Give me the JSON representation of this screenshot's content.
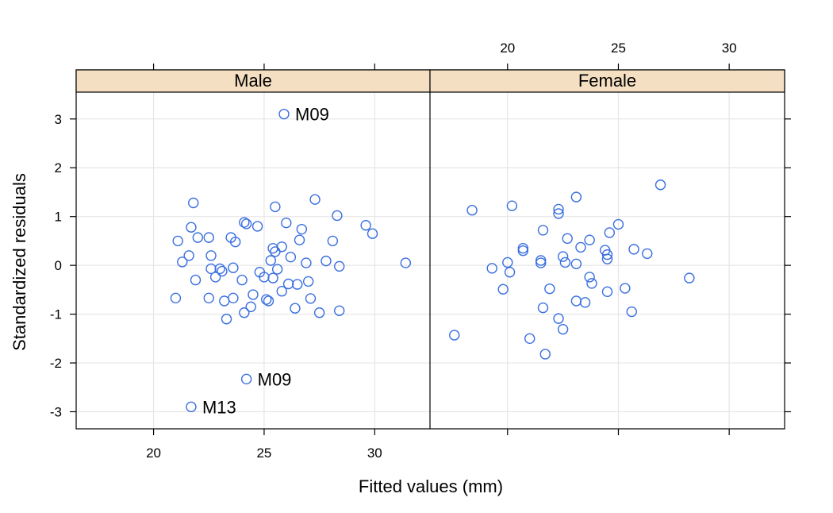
{
  "chart_data": {
    "type": "scatter",
    "xlabel": "Fitted values (mm)",
    "ylabel": "Standardized residuals",
    "xlim": [
      16.5,
      32.5
    ],
    "ylim": [
      -3.35,
      3.55
    ],
    "x_ticks": [
      20,
      25,
      30
    ],
    "y_ticks": [
      -3,
      -2,
      -1,
      0,
      1,
      2,
      3
    ],
    "grid": true,
    "colors": {
      "point": "#3a6fe0",
      "strip": "#f5dfc2",
      "grid": "#e6e6e6"
    },
    "panels": [
      {
        "name": "Male",
        "points": [
          [
            21.0,
            -0.67
          ],
          [
            21.1,
            0.5
          ],
          [
            21.3,
            0.07
          ],
          [
            21.6,
            0.2
          ],
          [
            21.7,
            0.78
          ],
          [
            21.8,
            1.28
          ],
          [
            21.9,
            -0.3
          ],
          [
            22.0,
            0.57
          ],
          [
            22.5,
            -0.67
          ],
          [
            22.5,
            0.57
          ],
          [
            22.6,
            0.2
          ],
          [
            22.6,
            -0.07
          ],
          [
            22.8,
            -0.24
          ],
          [
            23.0,
            -0.07
          ],
          [
            23.1,
            -0.12
          ],
          [
            23.2,
            -0.73
          ],
          [
            23.3,
            -1.1
          ],
          [
            23.5,
            0.57
          ],
          [
            23.6,
            -0.67
          ],
          [
            23.6,
            -0.05
          ],
          [
            23.7,
            0.48
          ],
          [
            24.0,
            -0.3
          ],
          [
            24.1,
            0.88
          ],
          [
            24.1,
            -0.97
          ],
          [
            24.2,
            0.85
          ],
          [
            24.4,
            -0.85
          ],
          [
            24.5,
            -0.6
          ],
          [
            24.7,
            0.8
          ],
          [
            24.8,
            -0.14
          ],
          [
            25.0,
            -0.24
          ],
          [
            25.1,
            -0.7
          ],
          [
            25.2,
            -0.73
          ],
          [
            25.3,
            0.1
          ],
          [
            25.4,
            0.35
          ],
          [
            25.4,
            -0.26
          ],
          [
            25.5,
            0.28
          ],
          [
            25.5,
            1.2
          ],
          [
            25.6,
            -0.08
          ],
          [
            25.8,
            0.38
          ],
          [
            25.8,
            -0.53
          ],
          [
            26.0,
            0.87
          ],
          [
            26.1,
            -0.38
          ],
          [
            26.2,
            0.17
          ],
          [
            26.4,
            -0.88
          ],
          [
            26.5,
            -0.39
          ],
          [
            26.6,
            0.52
          ],
          [
            26.7,
            0.74
          ],
          [
            26.9,
            0.05
          ],
          [
            27.0,
            -0.33
          ],
          [
            27.1,
            -0.68
          ],
          [
            27.3,
            1.35
          ],
          [
            27.5,
            -0.97
          ],
          [
            27.8,
            0.09
          ],
          [
            28.1,
            0.5
          ],
          [
            28.3,
            1.02
          ],
          [
            28.4,
            -0.93
          ],
          [
            28.4,
            -0.02
          ],
          [
            29.6,
            0.82
          ],
          [
            29.9,
            0.65
          ],
          [
            31.4,
            0.05
          ],
          [
            25.9,
            3.1
          ],
          [
            24.2,
            -2.33
          ],
          [
            21.7,
            -2.9
          ]
        ],
        "labels": [
          {
            "text": "M09",
            "x": 25.9,
            "y": 3.1
          },
          {
            "text": "M09",
            "x": 24.2,
            "y": -2.33
          },
          {
            "text": "M13",
            "x": 21.7,
            "y": -2.9
          }
        ]
      },
      {
        "name": "Female",
        "points": [
          [
            17.6,
            -1.43
          ],
          [
            18.4,
            1.13
          ],
          [
            19.3,
            -0.06
          ],
          [
            19.8,
            -0.49
          ],
          [
            20.0,
            0.06
          ],
          [
            20.1,
            -0.14
          ],
          [
            20.2,
            1.22
          ],
          [
            20.7,
            0.35
          ],
          [
            20.7,
            0.3
          ],
          [
            21.0,
            -1.5
          ],
          [
            21.5,
            0.1
          ],
          [
            21.5,
            0.05
          ],
          [
            21.6,
            0.72
          ],
          [
            21.6,
            -0.87
          ],
          [
            21.7,
            -1.82
          ],
          [
            21.9,
            -0.48
          ],
          [
            22.3,
            -1.09
          ],
          [
            22.3,
            1.15
          ],
          [
            22.3,
            1.06
          ],
          [
            22.5,
            0.18
          ],
          [
            22.5,
            -1.31
          ],
          [
            22.6,
            0.06
          ],
          [
            22.7,
            0.55
          ],
          [
            23.1,
            0.03
          ],
          [
            23.1,
            1.4
          ],
          [
            23.1,
            -0.73
          ],
          [
            23.3,
            0.37
          ],
          [
            23.5,
            -0.76
          ],
          [
            23.7,
            0.52
          ],
          [
            23.7,
            -0.24
          ],
          [
            23.8,
            -0.37
          ],
          [
            24.4,
            0.31
          ],
          [
            24.5,
            0.22
          ],
          [
            24.5,
            0.13
          ],
          [
            24.5,
            -0.54
          ],
          [
            24.6,
            0.67
          ],
          [
            25.0,
            0.84
          ],
          [
            25.3,
            -0.47
          ],
          [
            25.6,
            -0.95
          ],
          [
            25.7,
            0.33
          ],
          [
            26.3,
            0.24
          ],
          [
            26.9,
            1.65
          ],
          [
            28.2,
            -0.26
          ]
        ],
        "labels": []
      }
    ]
  }
}
